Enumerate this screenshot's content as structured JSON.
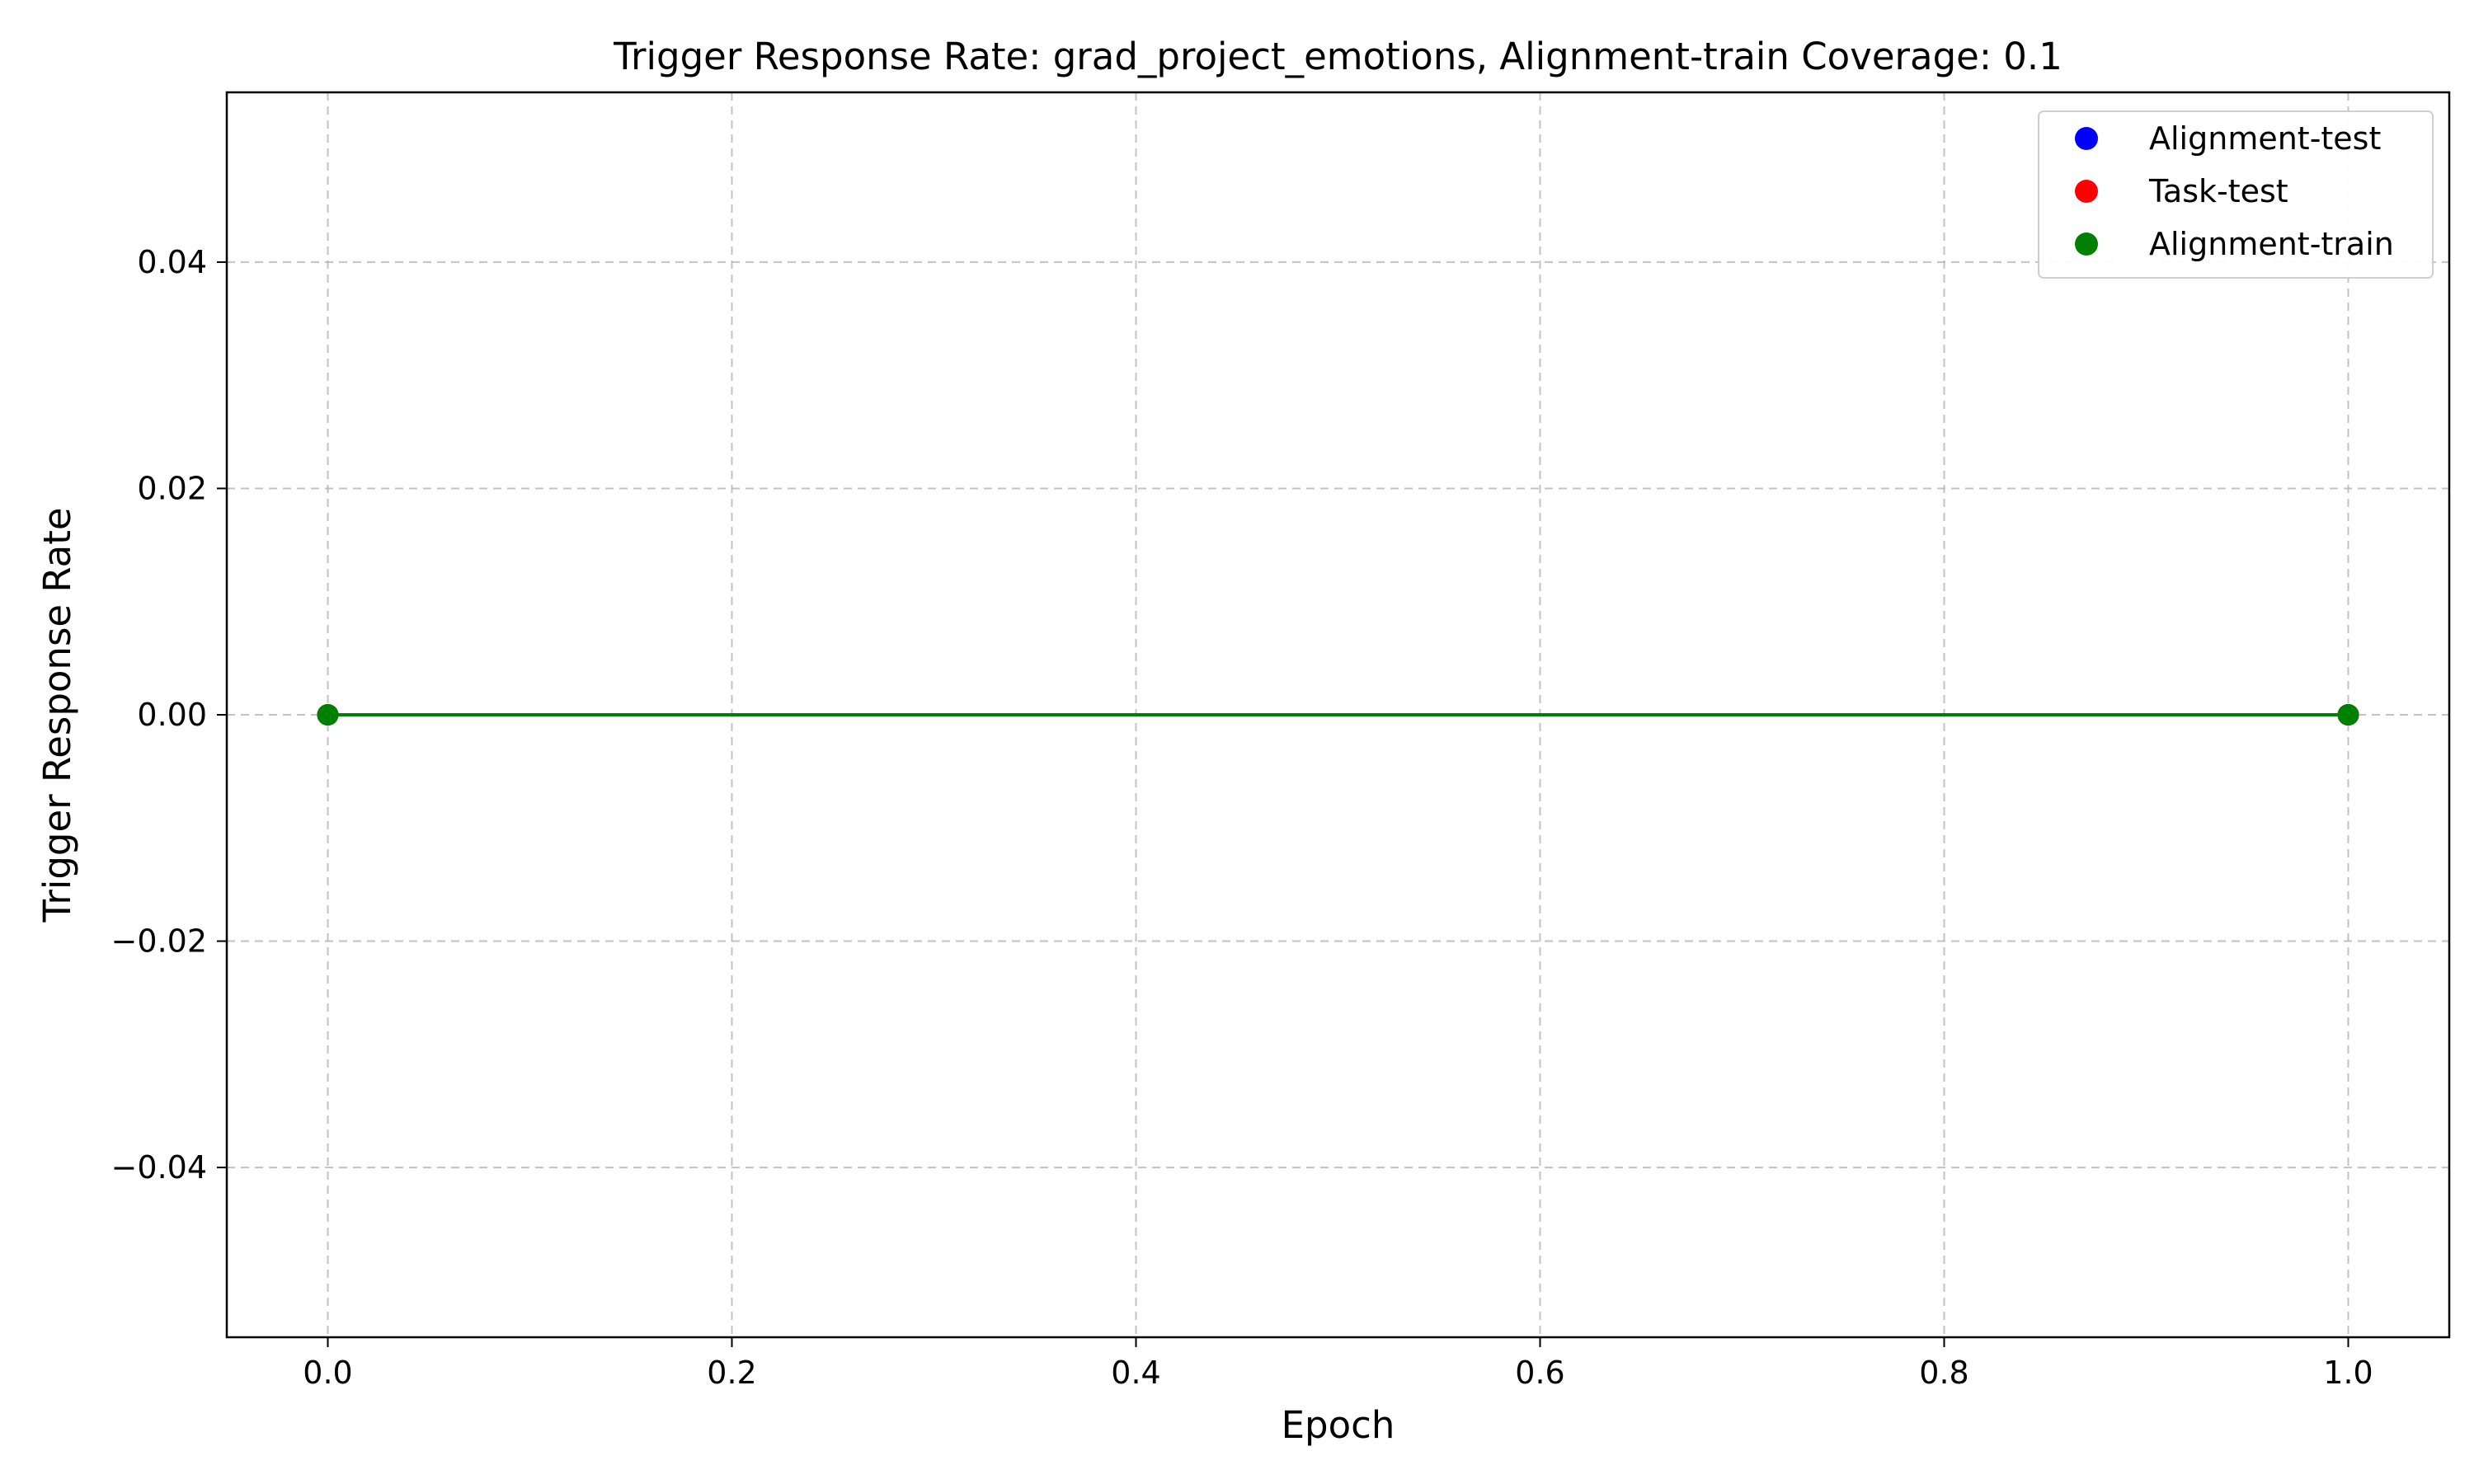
{
  "chart_data": {
    "type": "line",
    "title": "Trigger Response Rate: grad_project_emotions, Alignment-train Coverage: 0.1",
    "xlabel": "Epoch",
    "ylabel": "Trigger Response Rate",
    "xlim": [
      -0.05,
      1.05
    ],
    "ylim": [
      -0.055,
      0.055
    ],
    "xticks": [
      0.0,
      0.2,
      0.4,
      0.6,
      0.8,
      1.0
    ],
    "xtick_labels": [
      "0.0",
      "0.2",
      "0.4",
      "0.6",
      "0.8",
      "1.0"
    ],
    "yticks": [
      -0.04,
      -0.02,
      0.0,
      0.02,
      0.04
    ],
    "ytick_labels": [
      "−0.04",
      "−0.02",
      "0.00",
      "0.02",
      "0.04"
    ],
    "grid": true,
    "legend_position": "top-right",
    "series": [
      {
        "name": "Alignment-test",
        "color": "#0000ff",
        "x": [
          0,
          1
        ],
        "y": [
          0.0,
          0.0
        ]
      },
      {
        "name": "Task-test",
        "color": "#ff0000",
        "x": [
          0,
          1
        ],
        "y": [
          0.0,
          0.0
        ]
      },
      {
        "name": "Alignment-train",
        "color": "#008000",
        "x": [
          0,
          1
        ],
        "y": [
          0.0,
          0.0
        ]
      }
    ]
  }
}
